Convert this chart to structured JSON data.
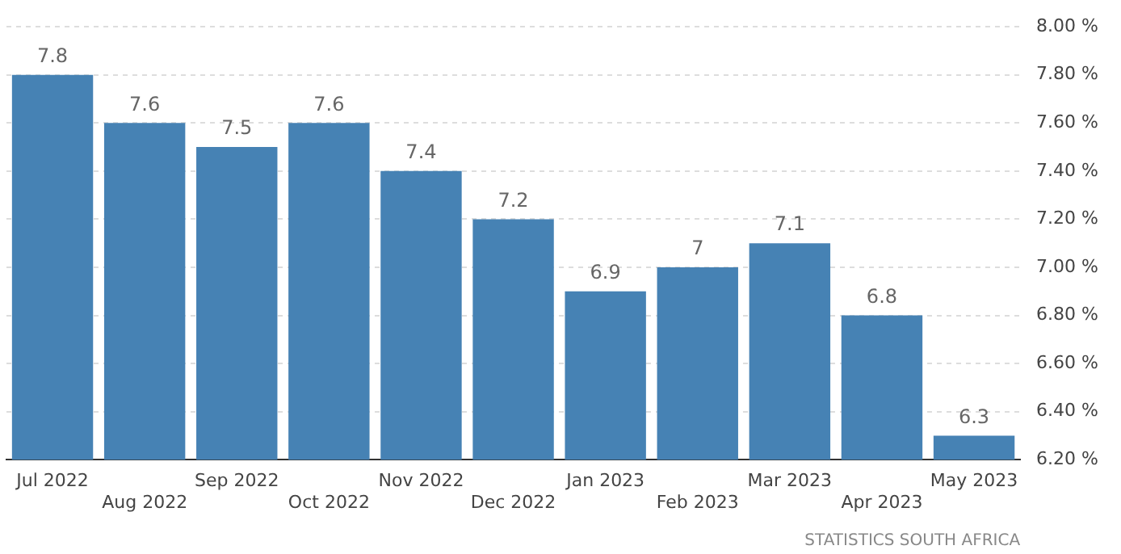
{
  "chart_data": {
    "type": "bar",
    "categories": [
      "Jul 2022",
      "Aug 2022",
      "Sep 2022",
      "Oct 2022",
      "Nov 2022",
      "Dec 2022",
      "Jan 2023",
      "Feb 2023",
      "Mar 2023",
      "Apr 2023",
      "May 2023"
    ],
    "values": [
      7.8,
      7.6,
      7.5,
      7.6,
      7.4,
      7.2,
      6.9,
      7,
      7.1,
      6.8,
      6.3
    ],
    "color": "#4682b4",
    "ylim": [
      6.2,
      8.0
    ],
    "yticks": [
      {
        "value": 6.2,
        "label": "6.20 %"
      },
      {
        "value": 6.4,
        "label": "6.40 %"
      },
      {
        "value": 6.6,
        "label": "6.60 %"
      },
      {
        "value": 6.8,
        "label": "6.80 %"
      },
      {
        "value": 7.0,
        "label": "7.00 %"
      },
      {
        "value": 7.2,
        "label": "7.20 %"
      },
      {
        "value": 7.4,
        "label": "7.40 %"
      },
      {
        "value": 7.6,
        "label": "7.60 %"
      },
      {
        "value": 7.8,
        "label": "7.80 %"
      },
      {
        "value": 8.0,
        "label": "8.00 %"
      }
    ],
    "grid": "y",
    "data_labels": true,
    "annotations": [
      "STATISTICS SOUTH AFRICA"
    ]
  }
}
